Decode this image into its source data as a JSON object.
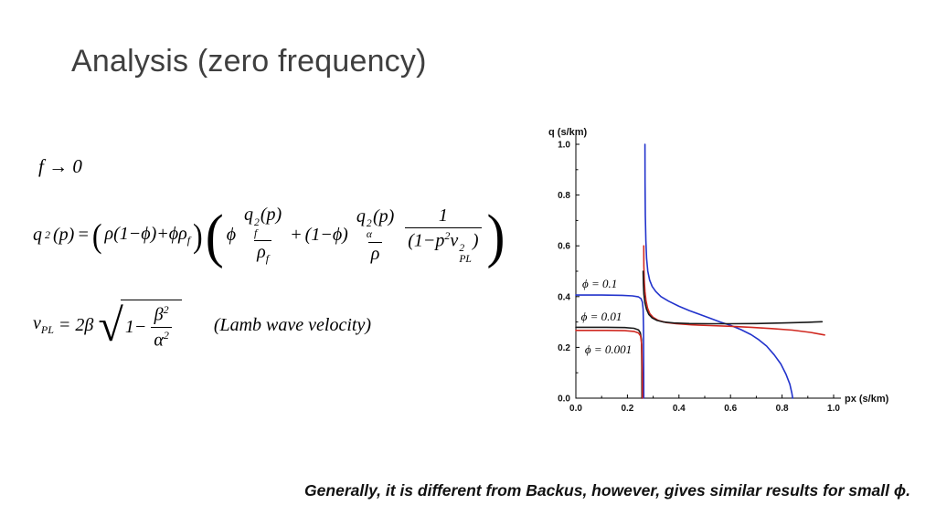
{
  "slide": {
    "title": "Analysis (zero frequency)",
    "caption": "Generally, it is different from Backus, however, gives similar results for small ϕ."
  },
  "math": {
    "limit": "f → 0",
    "q2": {
      "q": "q",
      "q_sup": "2",
      "q_arg": "(p)",
      "eq": "=",
      "f1_open": "(",
      "f1_body": "ρ(1−ϕ)+ϕρ",
      "f1_sub": "f",
      "f1_close": ")",
      "f2_open": "(",
      "phi": "ϕ",
      "fr1_num_base": "q",
      "fr1_num_sup": "2",
      "fr1_num_sub": "f",
      "fr1_num_arg": "(p)",
      "fr1_den": "ρ",
      "fr1_den_sub": "f",
      "plus": "+",
      "one_minus_phi": "(1−ϕ)",
      "fr2_num_base": "q",
      "fr2_num_sup": "2",
      "fr2_num_sub": "α",
      "fr2_num_arg": "(p)",
      "fr2_den": "ρ",
      "fr3_num": "1",
      "fr3_den_a": "(1−p",
      "fr3_den_a_sup": "2",
      "fr3_den_b": "v",
      "fr3_den_b_sup": "2",
      "fr3_den_b_sub": "PL",
      "fr3_den_close": ")",
      "f2_close": ")"
    },
    "vpl": {
      "lhs": "v",
      "lhs_sub": "PL",
      "eq": "=",
      "coef": "2β",
      "radical": "√",
      "one_minus": "1−",
      "num": "β",
      "num_sup": "2",
      "den": "α",
      "den_sup": "2",
      "note": "(Lamb wave velocity)"
    }
  },
  "chart_data": {
    "type": "line",
    "title": "",
    "xlabel": "px (s/km)",
    "ylabel": "q (s/km)",
    "xlim": [
      0,
      1
    ],
    "ylim": [
      0,
      1
    ],
    "grid": false,
    "legend_position": "none",
    "x_ticks": [
      "0.0",
      "0.2",
      "0.4",
      "0.6",
      "0.8",
      "1.0"
    ],
    "y_ticks": [
      "0.0",
      "0.2",
      "0.4",
      "0.6",
      "0.8",
      "1.0"
    ],
    "annotations": [
      {
        "text": "ϕ = 0.1",
        "x": 0.025,
        "y": 0.45
      },
      {
        "text": "ϕ = 0.01",
        "x": 0.02,
        "y": 0.32
      },
      {
        "text": "ϕ = 0.001",
        "x": 0.035,
        "y": 0.19
      }
    ],
    "series": [
      {
        "name": "blue-left-branch",
        "color": "#2233cc",
        "points": [
          [
            0,
            0.406
          ],
          [
            0.1,
            0.406
          ],
          [
            0.18,
            0.405
          ],
          [
            0.22,
            0.403
          ],
          [
            0.243,
            0.399
          ],
          [
            0.253,
            0.392
          ],
          [
            0.258,
            0.378
          ],
          [
            0.261,
            0.35
          ],
          [
            0.2625,
            0.28
          ],
          [
            0.263,
            0.12
          ],
          [
            0.2635,
            0
          ]
        ]
      },
      {
        "name": "black-left-branch",
        "color": "#1a1a1a",
        "points": [
          [
            0,
            0.279
          ],
          [
            0.12,
            0.279
          ],
          [
            0.19,
            0.278
          ],
          [
            0.225,
            0.275
          ],
          [
            0.243,
            0.269
          ],
          [
            0.25,
            0.258
          ],
          [
            0.2545,
            0.23
          ],
          [
            0.256,
            0.12
          ],
          [
            0.2565,
            0
          ]
        ]
      },
      {
        "name": "red-left-branch",
        "color": "#d02820",
        "points": [
          [
            0,
            0.267
          ],
          [
            0.12,
            0.267
          ],
          [
            0.19,
            0.266
          ],
          [
            0.225,
            0.263
          ],
          [
            0.243,
            0.257
          ],
          [
            0.251,
            0.245
          ],
          [
            0.2555,
            0.21
          ],
          [
            0.258,
            0.08
          ],
          [
            0.2585,
            0
          ]
        ]
      },
      {
        "name": "blue-main-branch",
        "color": "#2233cc",
        "points": [
          [
            0.268,
            1.0
          ],
          [
            0.2685,
            0.85
          ],
          [
            0.2695,
            0.72
          ],
          [
            0.2715,
            0.62
          ],
          [
            0.2745,
            0.55
          ],
          [
            0.279,
            0.5
          ],
          [
            0.286,
            0.465
          ],
          [
            0.296,
            0.44
          ],
          [
            0.31,
            0.42
          ],
          [
            0.33,
            0.4
          ],
          [
            0.36,
            0.382
          ],
          [
            0.4,
            0.362
          ],
          [
            0.44,
            0.345
          ],
          [
            0.48,
            0.33
          ],
          [
            0.52,
            0.315
          ],
          [
            0.56,
            0.3
          ],
          [
            0.6,
            0.287
          ],
          [
            0.64,
            0.27
          ],
          [
            0.68,
            0.25
          ],
          [
            0.71,
            0.23
          ],
          [
            0.74,
            0.205
          ],
          [
            0.77,
            0.17
          ],
          [
            0.795,
            0.135
          ],
          [
            0.815,
            0.095
          ],
          [
            0.83,
            0.055
          ],
          [
            0.838,
            0.02
          ],
          [
            0.841,
            0
          ]
        ]
      },
      {
        "name": "red-main-branch",
        "color": "#d02820",
        "points": [
          [
            0.2635,
            0.6
          ],
          [
            0.264,
            0.52
          ],
          [
            0.2655,
            0.46
          ],
          [
            0.268,
            0.42
          ],
          [
            0.272,
            0.385
          ],
          [
            0.278,
            0.355
          ],
          [
            0.287,
            0.333
          ],
          [
            0.3,
            0.318
          ],
          [
            0.32,
            0.306
          ],
          [
            0.35,
            0.298
          ],
          [
            0.39,
            0.293
          ],
          [
            0.45,
            0.289
          ],
          [
            0.52,
            0.286
          ],
          [
            0.6,
            0.283
          ],
          [
            0.68,
            0.279
          ],
          [
            0.76,
            0.274
          ],
          [
            0.84,
            0.268
          ],
          [
            0.91,
            0.259
          ],
          [
            0.965,
            0.249
          ]
        ]
      },
      {
        "name": "black-main-branch",
        "color": "#1a1a1a",
        "points": [
          [
            0.261,
            0.5
          ],
          [
            0.262,
            0.45
          ],
          [
            0.264,
            0.41
          ],
          [
            0.268,
            0.375
          ],
          [
            0.274,
            0.35
          ],
          [
            0.283,
            0.33
          ],
          [
            0.296,
            0.316
          ],
          [
            0.315,
            0.306
          ],
          [
            0.34,
            0.3
          ],
          [
            0.38,
            0.296
          ],
          [
            0.44,
            0.294
          ],
          [
            0.52,
            0.293
          ],
          [
            0.6,
            0.293
          ],
          [
            0.7,
            0.294
          ],
          [
            0.8,
            0.296
          ],
          [
            0.9,
            0.299
          ],
          [
            0.955,
            0.301
          ]
        ]
      }
    ]
  }
}
